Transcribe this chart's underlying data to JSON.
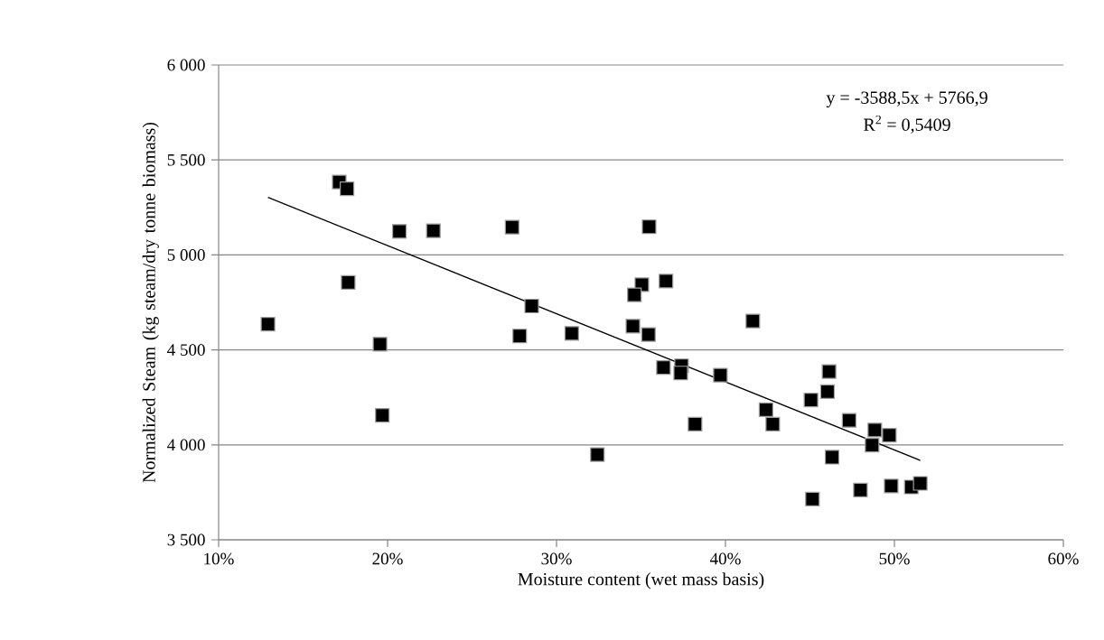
{
  "chart_data": {
    "type": "scatter",
    "xlabel": "Moisture content (wet mass basis)",
    "ylabel": "Normalized Steam (kg steam/dry tonne biomass)",
    "annotations": [
      "y = -3588,5x + 5766,9",
      "R$^{2}$ = 0,5409"
    ],
    "xlim": [
      10,
      60
    ],
    "xticks": [
      {
        "value": 10,
        "label": "10%"
      },
      {
        "value": 20,
        "label": "20%"
      },
      {
        "value": 30,
        "label": "30%"
      },
      {
        "value": 40,
        "label": "40%"
      },
      {
        "value": 50,
        "label": "50%"
      },
      {
        "value": 60,
        "label": "60%"
      }
    ],
    "ylim": [
      3500,
      6000
    ],
    "yticks": [
      {
        "value": 3500,
        "label": "3 500"
      },
      {
        "value": 4000,
        "label": "4 000"
      },
      {
        "value": 4500,
        "label": "4 500"
      },
      {
        "value": 5000,
        "label": "5 000"
      },
      {
        "value": 5500,
        "label": "5 500"
      },
      {
        "value": 6000,
        "label": "6 000"
      }
    ],
    "grid": "y",
    "series": [
      {
        "color": "#000000",
        "marker": "square",
        "x": [
          12.92,
          17.14,
          17.6,
          17.67,
          19.55,
          19.69,
          20.7,
          22.71,
          27.37,
          28.53,
          27.82,
          30.9,
          35.48,
          35.05,
          34.61,
          36.48,
          34.52,
          35.44,
          36.33,
          37.4,
          37.35,
          39.7,
          41.62,
          42.4,
          42.8,
          38.2,
          32.42,
          46.13,
          46.04,
          45.06,
          47.32,
          48.84,
          49.7,
          48.68,
          46.31,
          45.15,
          47.99,
          49.81,
          51.0,
          51.53
        ],
        "values": [
          4635,
          5384,
          5348,
          4855,
          4530,
          4155,
          5124,
          5127,
          5146,
          4731,
          4573,
          4587,
          5148,
          4843,
          4790,
          4862,
          4625,
          4581,
          4407,
          4416,
          4378,
          4367,
          4652,
          4185,
          4109,
          4109,
          3949,
          4386,
          4280,
          4236,
          4129,
          4078,
          4051,
          3998,
          3935,
          3714,
          3762,
          3783,
          3778,
          3797
        ]
      },
      {
        "type": "line",
        "color": "#000000",
        "marker": "none",
        "line_style": "solid",
        "x": [
          12.92,
          51.53
        ],
        "values": [
          5303,
          3918
        ]
      }
    ]
  }
}
